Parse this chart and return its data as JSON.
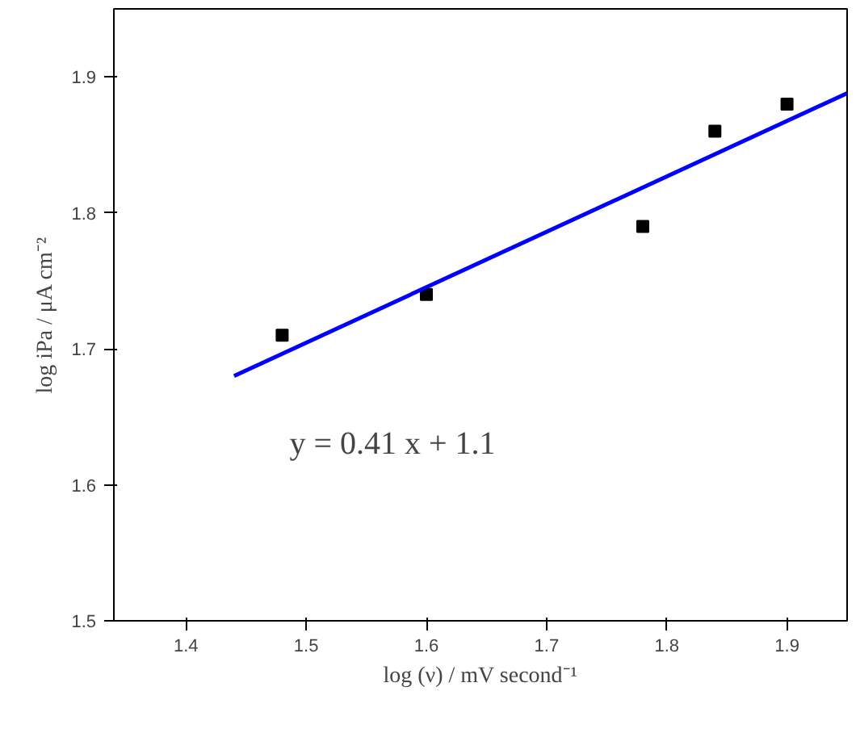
{
  "chart_data": {
    "type": "scatter",
    "xlabel": "log (ν) / mV second⁻¹",
    "ylabel": "log iPa / μA cm⁻²",
    "x": [
      1.48,
      1.6,
      1.78,
      1.84,
      1.9
    ],
    "series": [
      {
        "color": "#000000",
        "values": [
          1.71,
          1.74,
          1.79,
          1.86,
          1.88
        ],
        "marker": "square"
      },
      {
        "type": "line",
        "color": "#0000ff",
        "x": [
          1.44,
          1.95
        ],
        "values": [
          1.68,
          1.888
        ],
        "line_style": "solid"
      }
    ],
    "annotations": [
      "y = 0.41 x + 1.1"
    ],
    "xlim": [
      1.34,
      1.95
    ],
    "ylim": [
      1.5,
      1.95
    ],
    "xticks": [
      1.4,
      1.5,
      1.6,
      1.7,
      1.8,
      1.9
    ],
    "yticks": [
      1.5,
      1.6,
      1.7,
      1.8,
      1.9
    ],
    "grid": false
  }
}
